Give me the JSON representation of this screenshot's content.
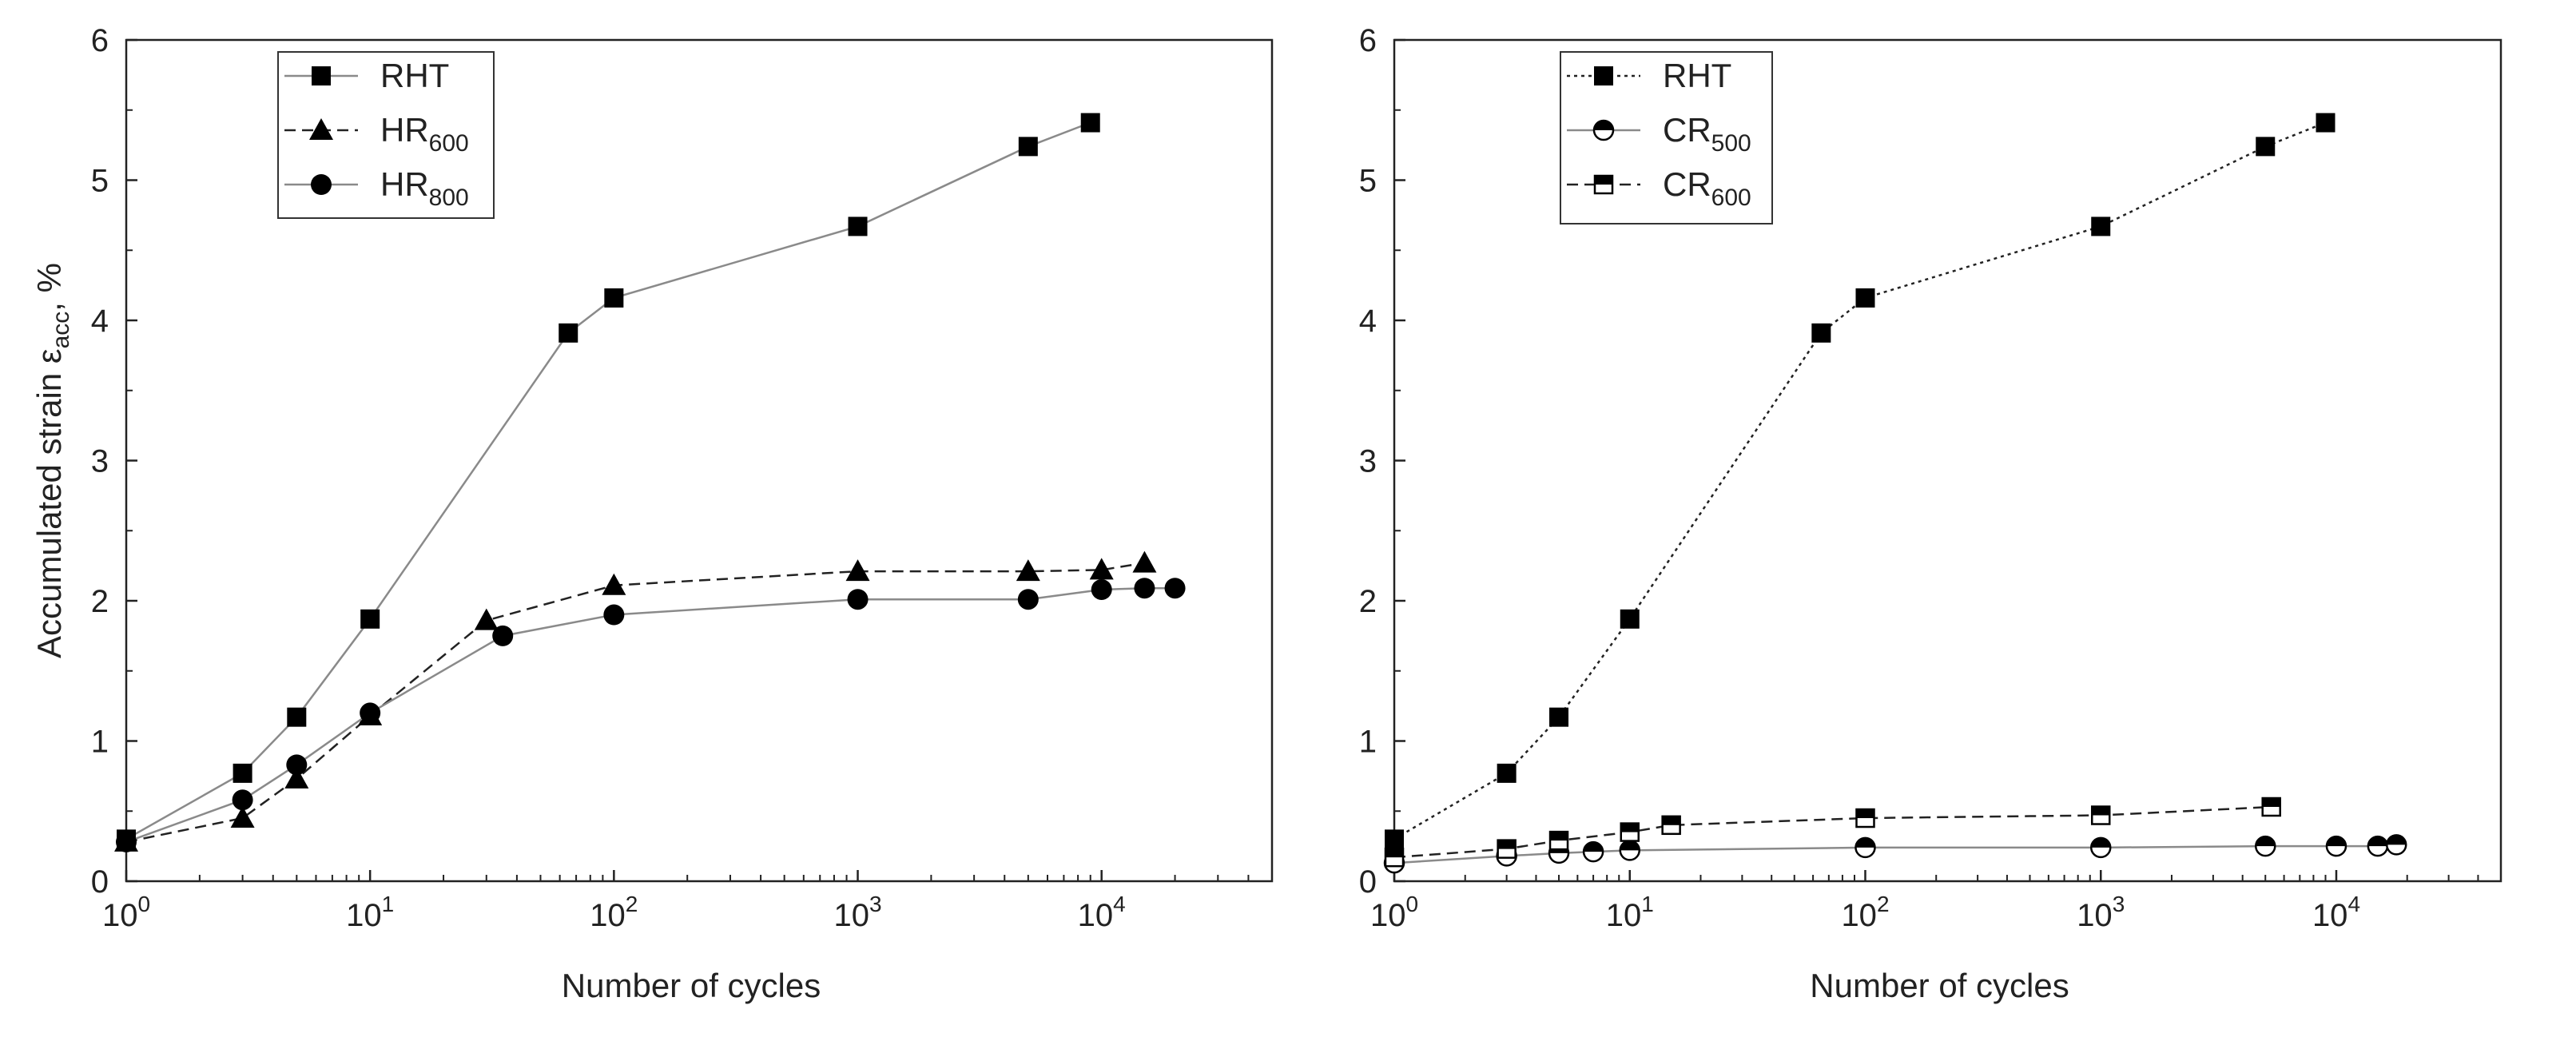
{
  "chart_data": [
    {
      "type": "line",
      "xscale": "log",
      "xlabel": "Number of cycles",
      "ylabel": "Accumulated strain ε",
      "ylabel_sub": "acc",
      "ylabel_tail": ", %",
      "xlim": [
        1,
        50000
      ],
      "ylim": [
        0,
        6
      ],
      "yticks": [
        "0",
        "1",
        "2",
        "3",
        "4",
        "5",
        "6"
      ],
      "xticks": [
        {
          "base": "10",
          "exp": "0"
        },
        {
          "base": "10",
          "exp": "1"
        },
        {
          "base": "10",
          "exp": "2"
        },
        {
          "base": "10",
          "exp": "3"
        },
        {
          "base": "10",
          "exp": "4"
        }
      ],
      "legend_position": "top-left",
      "series": [
        {
          "name": "RHT",
          "name_base": "RHT",
          "name_sub": "",
          "marker": "square-filled",
          "line": "solid-gray",
          "x": [
            1,
            3,
            5,
            10,
            65,
            100,
            1000,
            5000,
            9000
          ],
          "y": [
            0.3,
            0.77,
            1.17,
            1.87,
            3.91,
            4.16,
            4.67,
            5.24,
            5.41
          ]
        },
        {
          "name": "HR600",
          "name_base": "HR",
          "name_sub": "600",
          "marker": "triangle-filled",
          "line": "dashed-black",
          "x": [
            1,
            3,
            5,
            10,
            30,
            100,
            1000,
            5000,
            10000,
            15000
          ],
          "y": [
            0.28,
            0.45,
            0.73,
            1.18,
            1.86,
            2.11,
            2.21,
            2.21,
            2.22,
            2.27
          ]
        },
        {
          "name": "HR800",
          "name_base": "HR",
          "name_sub": "800",
          "marker": "circle-filled",
          "line": "solid-gray",
          "x": [
            1,
            3,
            5,
            10,
            35,
            100,
            1000,
            5000,
            10000,
            15000,
            20000
          ],
          "y": [
            0.28,
            0.58,
            0.83,
            1.2,
            1.75,
            1.9,
            2.01,
            2.01,
            2.08,
            2.09,
            2.09
          ]
        }
      ]
    },
    {
      "type": "line",
      "xscale": "log",
      "xlabel": "Number of cycles",
      "ylabel": "",
      "xlim": [
        1,
        50000
      ],
      "ylim": [
        0,
        6
      ],
      "yticks": [
        "0",
        "1",
        "2",
        "3",
        "4",
        "5",
        "6"
      ],
      "xticks": [
        {
          "base": "10",
          "exp": "0"
        },
        {
          "base": "10",
          "exp": "1"
        },
        {
          "base": "10",
          "exp": "2"
        },
        {
          "base": "10",
          "exp": "3"
        },
        {
          "base": "10",
          "exp": "4"
        }
      ],
      "legend_position": "top-left",
      "series": [
        {
          "name": "RHT",
          "name_base": "RHT",
          "name_sub": "",
          "marker": "square-filled",
          "line": "dotted-black",
          "x": [
            1,
            3,
            5,
            10,
            65,
            100,
            1000,
            5000,
            9000
          ],
          "y": [
            0.3,
            0.77,
            1.17,
            1.87,
            3.91,
            4.16,
            4.67,
            5.24,
            5.41
          ]
        },
        {
          "name": "CR500",
          "name_base": "CR",
          "name_sub": "500",
          "marker": "circle-half",
          "line": "solid-gray",
          "x": [
            1,
            3,
            5,
            7,
            10,
            100,
            1000,
            5000,
            10000,
            15000,
            18000
          ],
          "y": [
            0.13,
            0.18,
            0.2,
            0.21,
            0.22,
            0.24,
            0.24,
            0.25,
            0.25,
            0.25,
            0.26
          ]
        },
        {
          "name": "CR600",
          "name_base": "CR",
          "name_sub": "600",
          "marker": "square-half",
          "line": "dashed-black",
          "x": [
            1,
            3,
            5,
            10,
            15,
            100,
            1000,
            5300
          ],
          "y": [
            0.17,
            0.23,
            0.29,
            0.35,
            0.4,
            0.45,
            0.47,
            0.53
          ]
        }
      ]
    }
  ]
}
